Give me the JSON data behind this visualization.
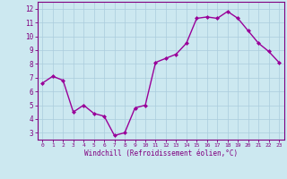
{
  "x": [
    0,
    1,
    2,
    3,
    4,
    5,
    6,
    7,
    8,
    9,
    10,
    11,
    12,
    13,
    14,
    15,
    16,
    17,
    18,
    19,
    20,
    21,
    22,
    23
  ],
  "y": [
    6.6,
    7.1,
    6.8,
    4.5,
    5.0,
    4.4,
    4.2,
    2.8,
    3.0,
    4.8,
    5.0,
    8.1,
    8.4,
    8.7,
    9.5,
    11.3,
    11.4,
    11.3,
    11.8,
    11.3,
    10.4,
    9.5,
    8.9,
    8.1
  ],
  "line_color": "#990099",
  "marker": "D",
  "marker_size": 2,
  "linewidth": 1.0,
  "bg_color": "#cce8f0",
  "grid_color": "#aaccdd",
  "xlabel": "Windchill (Refroidissement éolien,°C)",
  "ylim": [
    2.5,
    12.5
  ],
  "xlim": [
    -0.5,
    23.5
  ],
  "yticks": [
    3,
    4,
    5,
    6,
    7,
    8,
    9,
    10,
    11,
    12
  ],
  "xticks": [
    0,
    1,
    2,
    3,
    4,
    5,
    6,
    7,
    8,
    9,
    10,
    11,
    12,
    13,
    14,
    15,
    16,
    17,
    18,
    19,
    20,
    21,
    22,
    23
  ],
  "spine_color": "#800080",
  "tick_color": "#800080",
  "label_color": "#800080",
  "xtick_fontsize": 4.5,
  "ytick_fontsize": 5.5,
  "xlabel_fontsize": 5.5
}
